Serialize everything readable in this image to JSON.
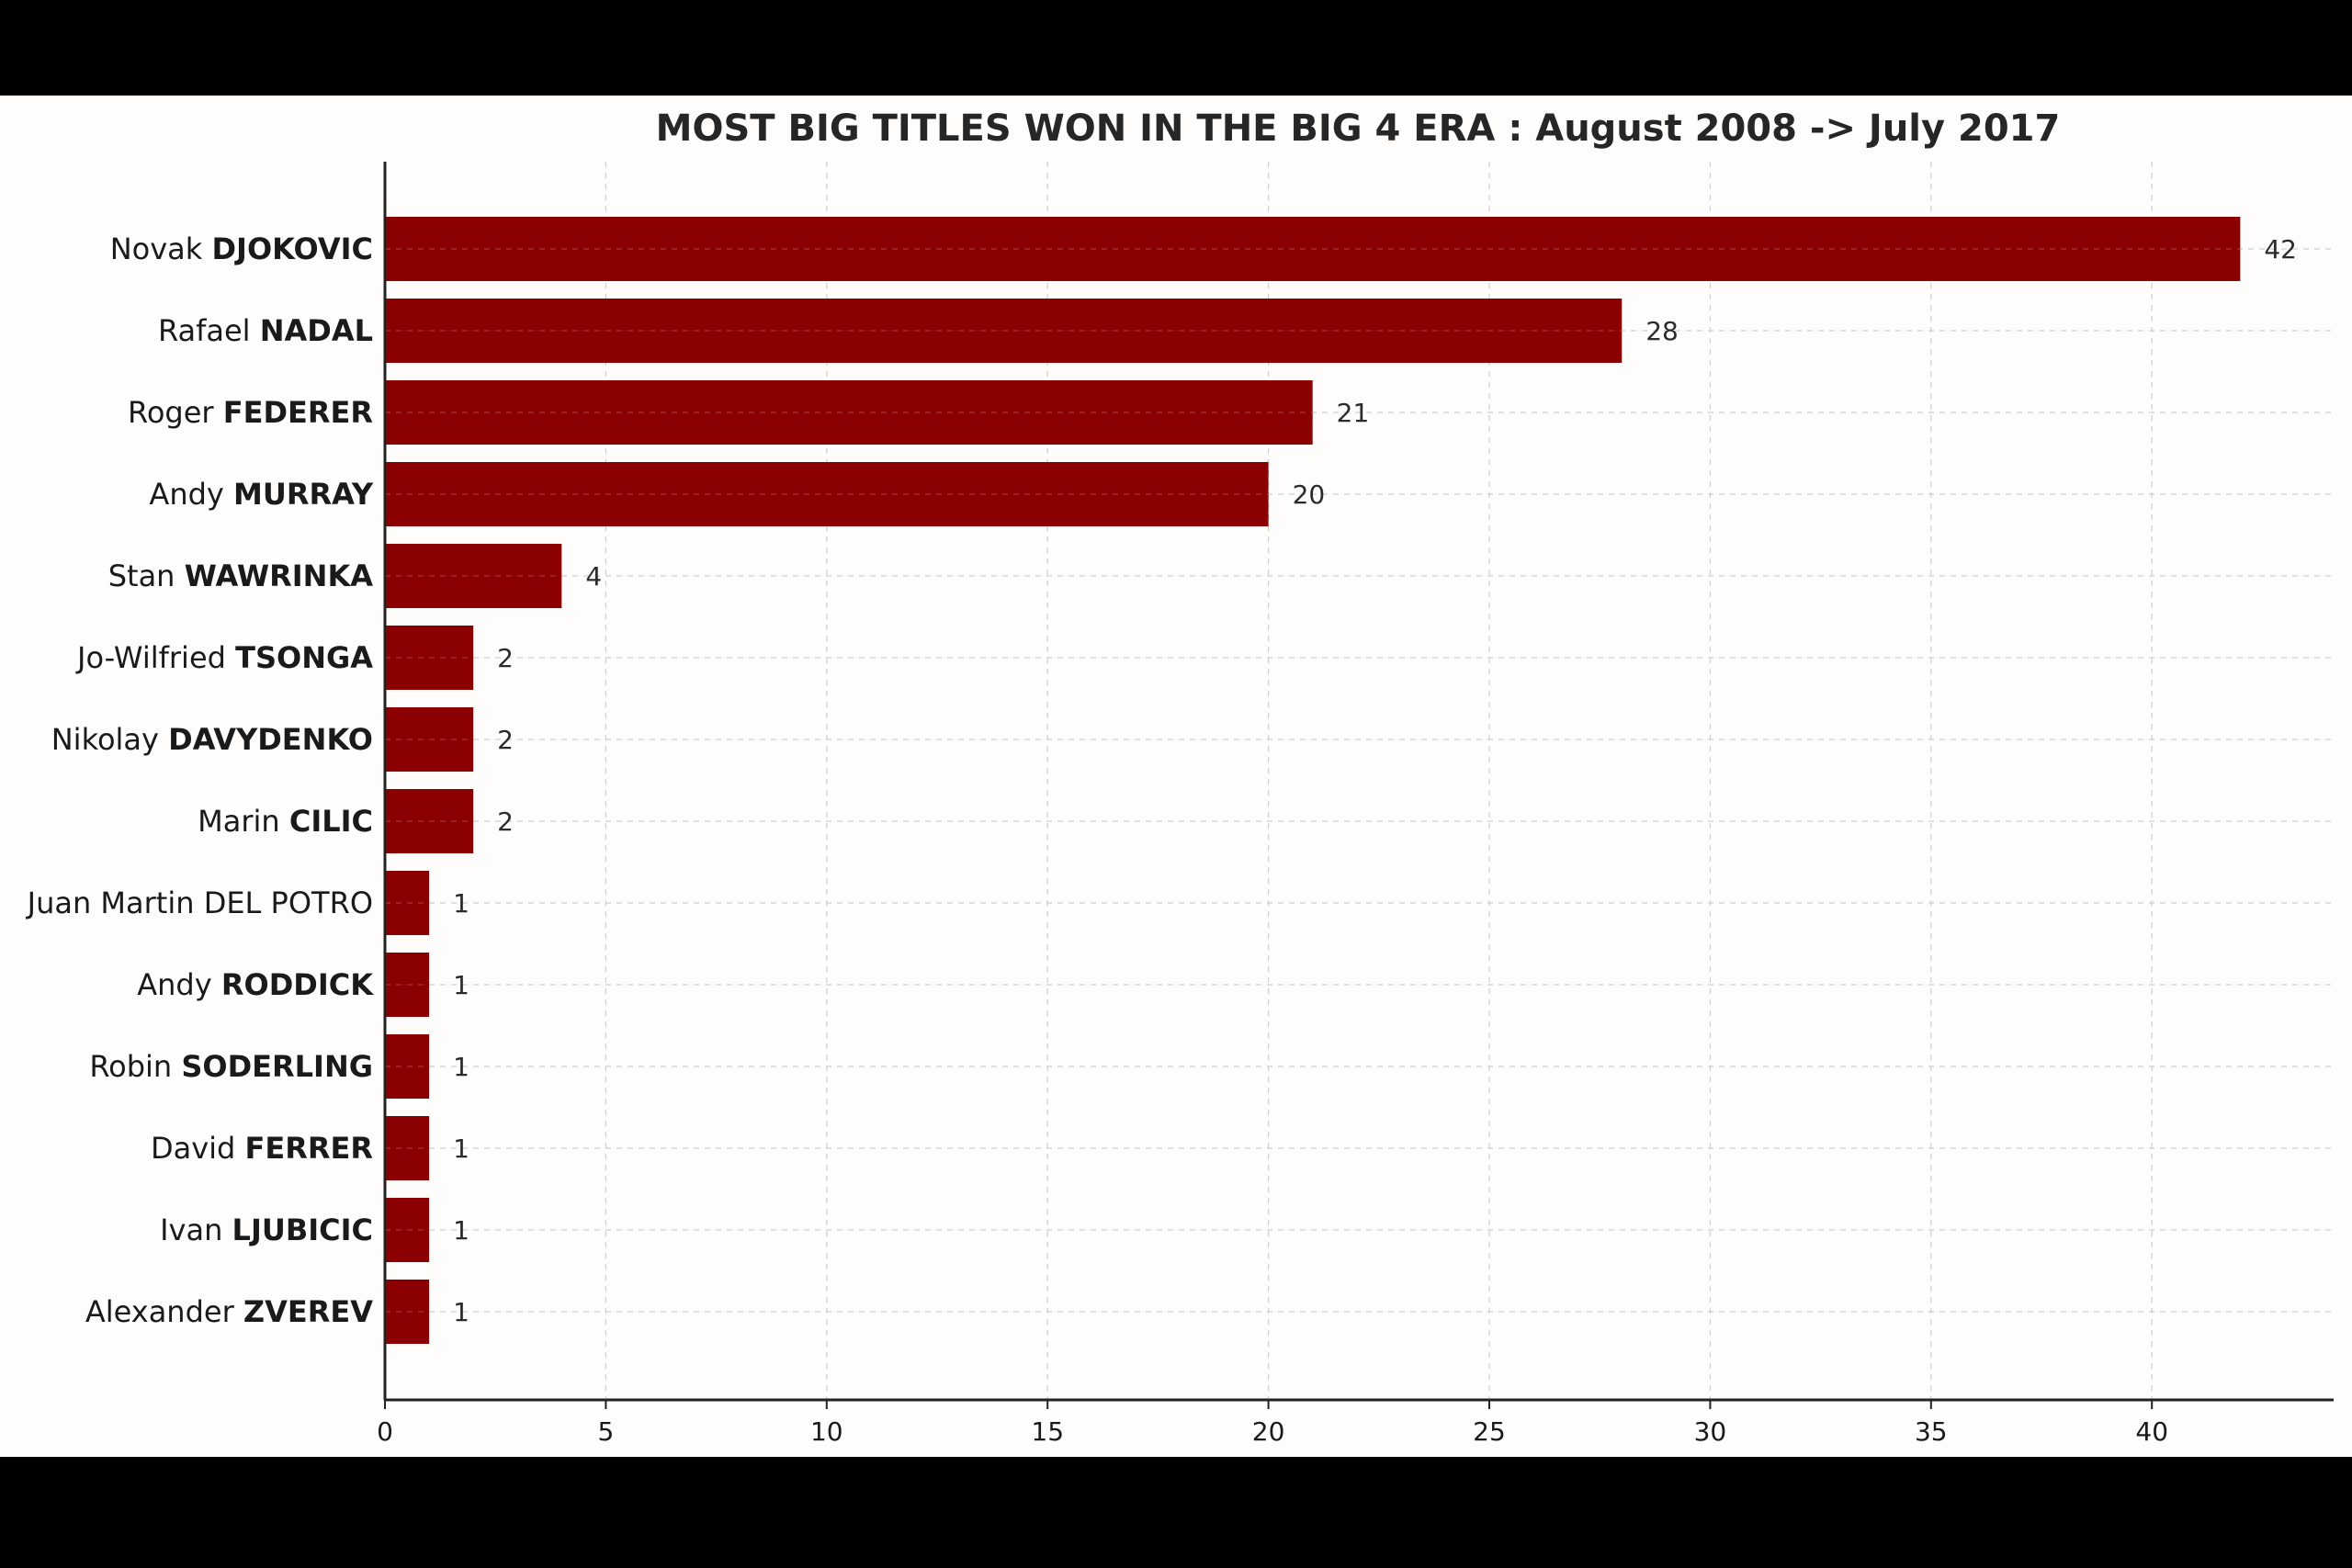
{
  "colors": {
    "background": "#000000",
    "panel": "#fefdfc",
    "bar": "#8b0000",
    "text": "#1a1a1a"
  },
  "chart_data": {
    "type": "bar",
    "orientation": "horizontal",
    "title": "MOST BIG TITLES WON IN THE BIG 4 ERA : August 2008 -> July 2017",
    "xlabel": "",
    "ylabel": "",
    "xlim": [
      0,
      44
    ],
    "xticks": [
      0,
      5,
      10,
      15,
      20,
      25,
      30,
      35,
      40
    ],
    "grid": true,
    "legend": "none",
    "categories": [
      {
        "first": "Novak",
        "last": "DJOKOVIC",
        "last_bold": true
      },
      {
        "first": "Rafael",
        "last": "NADAL",
        "last_bold": true
      },
      {
        "first": "Roger",
        "last": "FEDERER",
        "last_bold": true
      },
      {
        "first": "Andy",
        "last": "MURRAY",
        "last_bold": true
      },
      {
        "first": "Stan",
        "last": "WAWRINKA",
        "last_bold": true
      },
      {
        "first": "Jo-Wilfried",
        "last": "TSONGA",
        "last_bold": true
      },
      {
        "first": "Nikolay",
        "last": "DAVYDENKO",
        "last_bold": true
      },
      {
        "first": "Marin",
        "last": "CILIC",
        "last_bold": true
      },
      {
        "first": "Juan Martin",
        "last": "DEL POTRO",
        "last_bold": false
      },
      {
        "first": "Andy",
        "last": "RODDICK",
        "last_bold": true
      },
      {
        "first": "Robin",
        "last": "SODERLING",
        "last_bold": true
      },
      {
        "first": "David",
        "last": "FERRER",
        "last_bold": true
      },
      {
        "first": "Ivan",
        "last": "LJUBICIC",
        "last_bold": true
      },
      {
        "first": "Alexander",
        "last": "ZVEREV",
        "last_bold": true
      }
    ],
    "values": [
      42,
      28,
      21,
      20,
      4,
      2,
      2,
      2,
      1,
      1,
      1,
      1,
      1,
      1
    ]
  }
}
